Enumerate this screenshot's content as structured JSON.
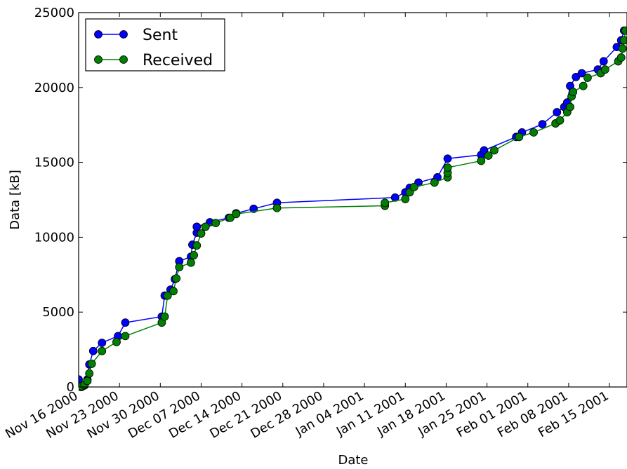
{
  "chart_data": {
    "type": "line",
    "title": "",
    "xlabel": "Date",
    "ylabel": "Data [kB]",
    "ylim": [
      0,
      25000
    ],
    "xlim": [
      "2000-11-16",
      "2001-02-18"
    ],
    "x_ticks": [
      "Nov 16 2000",
      "Nov 23 2000",
      "Nov 30 2000",
      "Dec 07 2000",
      "Dec 14 2000",
      "Dec 21 2000",
      "Dec 28 2000",
      "Jan 04 2001",
      "Jan 11 2001",
      "Jan 18 2001",
      "Jan 25 2001",
      "Feb 01 2001",
      "Feb 08 2001",
      "Feb 15 2001"
    ],
    "y_ticks": [
      "0",
      "5000",
      "10000",
      "15000",
      "20000",
      "25000"
    ],
    "grid": false,
    "legend_position": "top-left",
    "series": [
      {
        "name": "Sent",
        "color": "#0000ff",
        "points": [
          [
            "2000-11-16 00:00",
            500
          ],
          [
            "2000-11-16 12:00",
            0
          ],
          [
            "2000-11-17 00:00",
            100
          ],
          [
            "2000-11-17 12:00",
            500
          ],
          [
            "2000-11-17 20:00",
            1500
          ],
          [
            "2000-11-18 12:00",
            2400
          ],
          [
            "2000-11-20 00:00",
            2950
          ],
          [
            "2000-11-22 18:00",
            3400
          ],
          [
            "2000-11-24 00:00",
            4300
          ],
          [
            "2000-11-30 06:00",
            4700
          ],
          [
            "2000-11-30 18:00",
            6100
          ],
          [
            "2000-12-01 18:00",
            6500
          ],
          [
            "2000-12-02 12:00",
            7200
          ],
          [
            "2000-12-03 06:00",
            8400
          ],
          [
            "2000-12-05 06:00",
            8700
          ],
          [
            "2000-12-05 12:00",
            9500
          ],
          [
            "2000-12-06 06:00",
            10300
          ],
          [
            "2000-12-06 06:00",
            10700
          ],
          [
            "2000-12-08 12:00",
            11000
          ],
          [
            "2000-12-11 18:00",
            11300
          ],
          [
            "2000-12-13 00:00",
            11600
          ],
          [
            "2000-12-16 00:00",
            11900
          ],
          [
            "2000-12-20 00:00",
            12300
          ],
          [
            "2001-01-09 06:00",
            12650
          ],
          [
            "2001-01-11 00:00",
            13000
          ],
          [
            "2001-01-11 18:00",
            13300
          ],
          [
            "2001-01-13 06:00",
            13650
          ],
          [
            "2001-01-16 12:00",
            14000
          ],
          [
            "2001-01-18 06:00",
            15250
          ],
          [
            "2001-01-24 00:00",
            15500
          ],
          [
            "2001-01-24 12:00",
            15800
          ],
          [
            "2001-01-30 00:00",
            16700
          ],
          [
            "2001-01-31 00:00",
            17000
          ],
          [
            "2001-02-03 12:00",
            17550
          ],
          [
            "2001-02-06 00:00",
            18350
          ],
          [
            "2001-02-07 06:00",
            18700
          ],
          [
            "2001-02-07 18:00",
            19000
          ],
          [
            "2001-02-08 06:00",
            20100
          ],
          [
            "2001-02-09 06:00",
            20700
          ],
          [
            "2001-02-10 06:00",
            20950
          ],
          [
            "2001-02-13 00:00",
            21200
          ],
          [
            "2001-02-14 00:00",
            21750
          ],
          [
            "2001-02-16 06:00",
            22700
          ],
          [
            "2001-02-17 00:00",
            23150
          ],
          [
            "2001-02-17 12:00",
            23800
          ]
        ]
      },
      {
        "name": "Received",
        "color": "#008000",
        "points": [
          [
            "2000-11-16 00:00",
            0
          ],
          [
            "2000-11-16 12:00",
            50
          ],
          [
            "2000-11-17 00:00",
            150
          ],
          [
            "2000-11-17 12:00",
            400
          ],
          [
            "2000-11-17 20:00",
            900
          ],
          [
            "2000-11-18 06:00",
            1550
          ],
          [
            "2000-11-20 00:00",
            2400
          ],
          [
            "2000-11-22 12:00",
            3000
          ],
          [
            "2000-11-24 00:00",
            3400
          ],
          [
            "2000-11-30 06:00",
            4300
          ],
          [
            "2000-11-30 18:00",
            4700
          ],
          [
            "2000-12-01 06:00",
            6100
          ],
          [
            "2000-12-02 06:00",
            6400
          ],
          [
            "2000-12-02 18:00",
            7250
          ],
          [
            "2000-12-03 06:00",
            8000
          ],
          [
            "2000-12-05 06:00",
            8300
          ],
          [
            "2000-12-05 18:00",
            8800
          ],
          [
            "2000-12-06 06:00",
            9450
          ],
          [
            "2000-12-07 00:00",
            10250
          ],
          [
            "2000-12-07 18:00",
            10700
          ],
          [
            "2000-12-09 12:00",
            10950
          ],
          [
            "2000-12-12 00:00",
            11300
          ],
          [
            "2000-12-13 00:00",
            11550
          ],
          [
            "2000-12-20 00:00",
            11950
          ],
          [
            "2001-01-07 12:00",
            12100
          ],
          [
            "2001-01-07 12:00",
            12300
          ],
          [
            "2001-01-11 00:00",
            12550
          ],
          [
            "2001-01-11 18:00",
            13000
          ],
          [
            "2001-01-12 12:00",
            13350
          ],
          [
            "2001-01-16 00:00",
            13650
          ],
          [
            "2001-01-18 06:00",
            14000
          ],
          [
            "2001-01-18 06:00",
            14300
          ],
          [
            "2001-01-18 06:00",
            14650
          ],
          [
            "2001-01-24 00:00",
            15100
          ],
          [
            "2001-01-25 06:00",
            15450
          ],
          [
            "2001-01-26 06:00",
            15800
          ],
          [
            "2001-01-30 12:00",
            16700
          ],
          [
            "2001-02-02 00:00",
            17000
          ],
          [
            "2001-02-05 18:00",
            17600
          ],
          [
            "2001-02-06 12:00",
            17800
          ],
          [
            "2001-02-07 18:00",
            18350
          ],
          [
            "2001-02-08 06:00",
            18700
          ],
          [
            "2001-02-08 12:00",
            19400
          ],
          [
            "2001-02-08 18:00",
            19700
          ],
          [
            "2001-02-10 12:00",
            20100
          ],
          [
            "2001-02-11 06:00",
            20650
          ],
          [
            "2001-02-13 12:00",
            20950
          ],
          [
            "2001-02-14 06:00",
            21200
          ],
          [
            "2001-02-16 12:00",
            21750
          ],
          [
            "2001-02-17 00:00",
            22000
          ],
          [
            "2001-02-17 06:00",
            22600
          ],
          [
            "2001-02-17 12:00",
            23150
          ],
          [
            "2001-02-17 18:00",
            23800
          ]
        ]
      }
    ]
  }
}
